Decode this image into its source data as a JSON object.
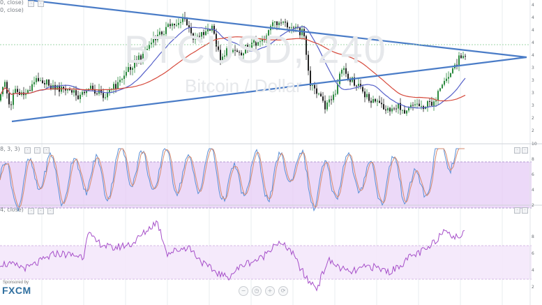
{
  "watermark": {
    "symbol": "BTCUSD, 240",
    "name": "Bitcoin / Dollar"
  },
  "panes": {
    "price": {
      "legend": "0, close)"
    },
    "legend_top": "0, close)",
    "stoch": {
      "legend": "8, 3, 3)"
    },
    "rsi": {
      "legend": "4, close)"
    }
  },
  "branding": {
    "sponsored": "Sponsored by",
    "logo": "FXCM"
  },
  "axis_right": {
    "price_ticks": [
      "4",
      "4",
      "4",
      "4",
      "4",
      "3",
      "3",
      "3",
      "3",
      "2",
      "2"
    ],
    "stoch_ticks": [
      "10",
      "8",
      "6",
      "4",
      "2"
    ],
    "rsi_ticks": [
      "8",
      "6",
      "4",
      "2"
    ]
  },
  "zoom_controls": [
    "−",
    "◷",
    "+",
    "⟳"
  ],
  "colors": {
    "trendline": "#4a7cc7",
    "candle_up": "#2b8a3e",
    "candle_down": "#222222",
    "sma_short": "#5560c9",
    "sma_long": "#d64a3c",
    "stoch_fill": "#e6ccf5",
    "stoch_k": "#5a8fd6",
    "stoch_d": "#d68a6e",
    "rsi_fill": "#f4e8fb",
    "rsi_line": "#a64fc9"
  },
  "chart_data": {
    "type": "line",
    "title": "BTCUSD, 240",
    "subtitle": "Bitcoin / Dollar",
    "price_keypoints": [
      [
        0,
        47
      ],
      [
        6,
        35
      ],
      [
        14,
        52
      ],
      [
        20,
        40
      ],
      [
        30,
        45
      ],
      [
        40,
        42
      ],
      [
        55,
        35
      ],
      [
        75,
        40
      ],
      [
        100,
        42
      ],
      [
        115,
        45
      ],
      [
        125,
        40
      ],
      [
        135,
        42
      ],
      [
        150,
        44
      ],
      [
        170,
        38
      ],
      [
        185,
        30
      ],
      [
        200,
        25
      ],
      [
        215,
        18
      ],
      [
        230,
        12
      ],
      [
        245,
        8
      ],
      [
        265,
        5
      ],
      [
        275,
        14
      ],
      [
        290,
        12
      ],
      [
        305,
        10
      ],
      [
        315,
        25
      ],
      [
        330,
        20
      ],
      [
        345,
        22
      ],
      [
        360,
        18
      ],
      [
        380,
        14
      ],
      [
        395,
        6
      ],
      [
        405,
        8
      ],
      [
        420,
        10
      ],
      [
        435,
        12
      ],
      [
        445,
        40
      ],
      [
        455,
        42
      ],
      [
        465,
        50
      ],
      [
        480,
        45
      ],
      [
        490,
        30
      ],
      [
        500,
        35
      ],
      [
        510,
        38
      ],
      [
        525,
        45
      ],
      [
        540,
        48
      ],
      [
        555,
        52
      ],
      [
        570,
        50
      ],
      [
        580,
        52
      ],
      [
        590,
        48
      ],
      [
        605,
        50
      ],
      [
        620,
        48
      ],
      [
        635,
        40
      ],
      [
        650,
        30
      ],
      [
        660,
        24
      ],
      [
        667,
        22
      ]
    ],
    "stoch_keypoints": [
      [
        0,
        60
      ],
      [
        30,
        45
      ],
      [
        60,
        75
      ],
      [
        90,
        50
      ],
      [
        120,
        70
      ],
      [
        150,
        55
      ],
      [
        180,
        85
      ],
      [
        210,
        65
      ],
      [
        240,
        75
      ],
      [
        270,
        60
      ],
      [
        300,
        80
      ],
      [
        330,
        45
      ],
      [
        360,
        70
      ],
      [
        390,
        55
      ],
      [
        420,
        85
      ],
      [
        450,
        45
      ],
      [
        480,
        60
      ],
      [
        510,
        70
      ],
      [
        540,
        50
      ],
      [
        570,
        65
      ],
      [
        600,
        40
      ],
      [
        630,
        95
      ],
      [
        650,
        100
      ],
      [
        667,
        90
      ]
    ],
    "rsi_keypoints": [
      [
        0,
        45
      ],
      [
        40,
        40
      ],
      [
        80,
        55
      ],
      [
        120,
        52
      ],
      [
        125,
        78
      ],
      [
        135,
        68
      ],
      [
        160,
        60
      ],
      [
        190,
        65
      ],
      [
        225,
        88
      ],
      [
        240,
        55
      ],
      [
        270,
        62
      ],
      [
        295,
        42
      ],
      [
        325,
        30
      ],
      [
        350,
        44
      ],
      [
        375,
        50
      ],
      [
        395,
        66
      ],
      [
        415,
        60
      ],
      [
        440,
        28
      ],
      [
        455,
        20
      ],
      [
        470,
        48
      ],
      [
        500,
        35
      ],
      [
        530,
        42
      ],
      [
        560,
        36
      ],
      [
        590,
        52
      ],
      [
        615,
        60
      ],
      [
        640,
        82
      ],
      [
        650,
        70
      ],
      [
        667,
        76
      ]
    ],
    "stoch_band": [
      20,
      80
    ],
    "rsi_band": [
      30,
      70
    ]
  }
}
